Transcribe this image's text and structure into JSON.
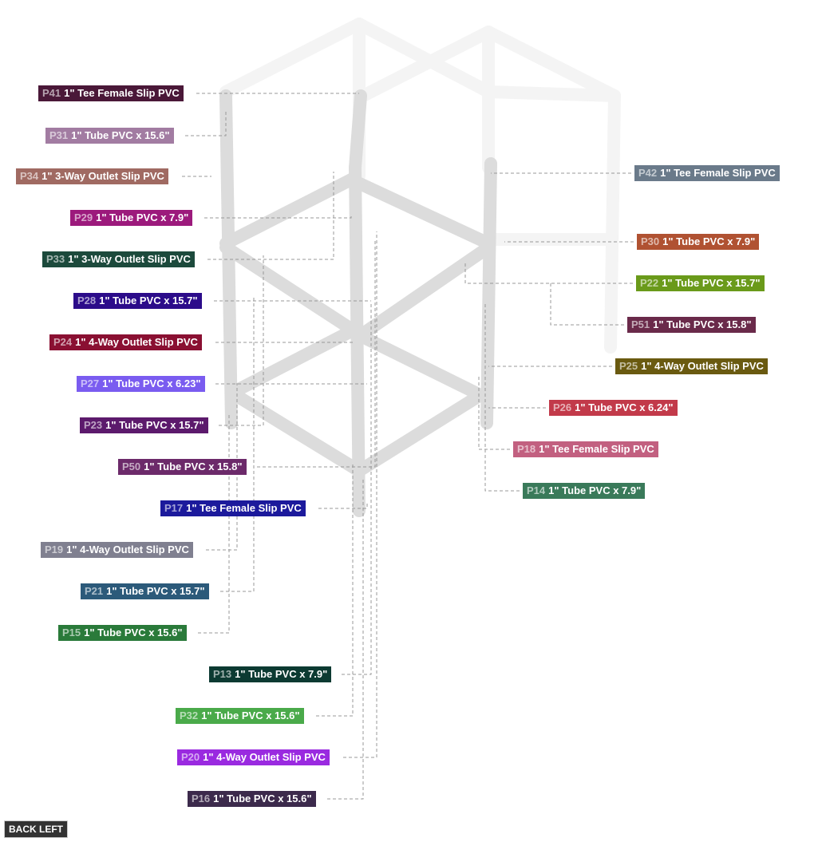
{
  "parts": [
    {
      "id": "P41",
      "name": "1\" Tee Female Slip PVC",
      "color": "#4a1838"
    },
    {
      "id": "P31",
      "name": "1\" Tube PVC x 15.6\"",
      "color": "#a27ca2"
    },
    {
      "id": "P34",
      "name": "1\" 3-Way Outlet Slip PVC",
      "color": "#a06a62"
    },
    {
      "id": "P29",
      "name": "1\" Tube PVC x 7.9\"",
      "color": "#9c1a7c"
    },
    {
      "id": "P33",
      "name": "1\" 3-Way Outlet Slip PVC",
      "color": "#1c4a3c"
    },
    {
      "id": "P28",
      "name": "1\" Tube PVC x 15.7\"",
      "color": "#2c0c8a"
    },
    {
      "id": "P24",
      "name": "1\" 4-Way Outlet Slip PVC",
      "color": "#8a1032"
    },
    {
      "id": "P27",
      "name": "1\" Tube PVC x 6.23\"",
      "color": "#7a5cf0"
    },
    {
      "id": "P23",
      "name": "1\" Tube PVC x 15.7\"",
      "color": "#5c1a6c"
    },
    {
      "id": "P50",
      "name": "1\" Tube PVC x 15.8\"",
      "color": "#6c2a6a"
    },
    {
      "id": "P17",
      "name": "1\" Tee Female Slip PVC",
      "color": "#1c1a9c"
    },
    {
      "id": "P19",
      "name": "1\" 4-Way Outlet Slip PVC",
      "color": "#808090"
    },
    {
      "id": "P21",
      "name": "1\" Tube PVC x 15.7\"",
      "color": "#2c5a7a"
    },
    {
      "id": "P15",
      "name": "1\" Tube PVC x 15.6\"",
      "color": "#2a7a3a"
    },
    {
      "id": "P13",
      "name": "1\" Tube PVC x 7.9\"",
      "color": "#0c3a32"
    },
    {
      "id": "P32",
      "name": "1\" Tube PVC x 15.6\"",
      "color": "#4aaa4a"
    },
    {
      "id": "P20",
      "name": "1\" 4-Way Outlet Slip PVC",
      "color": "#9a2ae0"
    },
    {
      "id": "P16",
      "name": "1\" Tube PVC x 15.6\"",
      "color": "#3c2a4c"
    },
    {
      "id": "P42",
      "name": "1\" Tee Female Slip PVC",
      "color": "#6a7a8a"
    },
    {
      "id": "P30",
      "name": "1\" Tube PVC x 7.9\"",
      "color": "#b05232"
    },
    {
      "id": "P22",
      "name": "1\" Tube PVC x 15.7\"",
      "color": "#6a9a1a"
    },
    {
      "id": "P51",
      "name": "1\" Tube PVC x 15.8\"",
      "color": "#6a2a4a"
    },
    {
      "id": "P25",
      "name": "1\" 4-Way Outlet Slip PVC",
      "color": "#6a5a10"
    },
    {
      "id": "P26",
      "name": "1\" Tube PVC x 6.24\"",
      "color": "#c23a4a"
    },
    {
      "id": "P18",
      "name": "1\" Tee Female Slip PVC",
      "color": "#c26080"
    },
    {
      "id": "P14",
      "name": "1\" Tube PVC x 7.9\"",
      "color": "#3a7a5a"
    }
  ],
  "view": "BACK LEFT"
}
